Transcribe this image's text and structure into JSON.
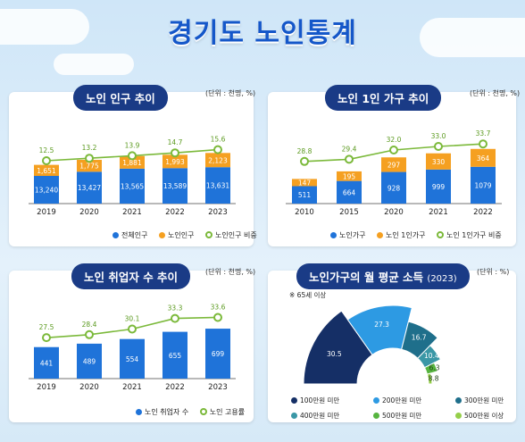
{
  "page_title": "경기도 노인통계",
  "colors": {
    "blue": "#1f73d9",
    "orange": "#f5a021",
    "green": "#7bb93a",
    "navy": "#1a3b86",
    "pie": [
      "#152f66",
      "#2d9ae3",
      "#1f6f8b",
      "#3a97a6",
      "#56b43f",
      "#95cf4a"
    ]
  },
  "chart_data": [
    {
      "id": "pop",
      "type": "bar",
      "title": "노인 인구 추이",
      "unit": "(단위 : 천명, %)",
      "categories": [
        "2019",
        "2020",
        "2021",
        "2022",
        "2023"
      ],
      "series": [
        {
          "name": "전체인구",
          "values": [
            13240,
            13427,
            13565,
            13589,
            13631
          ],
          "labels": [
            "13,240",
            "13,427",
            "13,565",
            "13,589",
            "13,631"
          ]
        },
        {
          "name": "노인인구",
          "values": [
            1651,
            1775,
            1881,
            1993,
            2123
          ],
          "labels": [
            "1,651",
            "1,775",
            "1,881",
            "1,993",
            "2,123"
          ]
        },
        {
          "name": "노인인구 비중",
          "values": [
            12.5,
            13.2,
            13.9,
            14.7,
            15.6
          ],
          "labels": [
            "12.5",
            "13.2",
            "13.9",
            "14.7",
            "15.6"
          ]
        }
      ]
    },
    {
      "id": "house",
      "type": "bar",
      "title": "노인 1인 가구 추이",
      "unit": "(단위 : 천명, %)",
      "categories": [
        "2010",
        "2015",
        "2020",
        "2021",
        "2022"
      ],
      "series": [
        {
          "name": "노인가구",
          "values": [
            511,
            664,
            928,
            999,
            1079
          ],
          "labels": [
            "511",
            "664",
            "928",
            "999",
            "1079"
          ]
        },
        {
          "name": "노인 1인가구",
          "values": [
            147,
            195,
            297,
            330,
            364
          ],
          "labels": [
            "147",
            "195",
            "297",
            "330",
            "364"
          ]
        },
        {
          "name": "노인 1인가구 비중",
          "values": [
            28.8,
            29.4,
            32.0,
            33.0,
            33.7
          ],
          "labels": [
            "28.8",
            "29.4",
            "32.0",
            "33.0",
            "33.7"
          ]
        }
      ]
    },
    {
      "id": "emp",
      "type": "bar",
      "title": "노인 취업자 수 추이",
      "unit": "(단위 : 천명, %)",
      "categories": [
        "2019",
        "2020",
        "2021",
        "2022",
        "2023"
      ],
      "series": [
        {
          "name": "노인 취업자 수",
          "values": [
            441,
            489,
            554,
            655,
            699
          ],
          "labels": [
            "441",
            "489",
            "554",
            "655",
            "699"
          ]
        },
        {
          "name": "노인 고용률",
          "values": [
            27.5,
            28.4,
            30.1,
            33.3,
            33.6
          ],
          "labels": [
            "27.5",
            "28.4",
            "30.1",
            "33.3",
            "33.6"
          ]
        }
      ]
    },
    {
      "id": "income",
      "type": "pie",
      "title": "노인가구의 월 평균 소득",
      "title_year": "(2023)",
      "unit": "(단위 : %)",
      "note": "※ 65세 이상",
      "categories": [
        "100만원 미만",
        "200만원 미만",
        "300만원 미만",
        "400만원 미만",
        "500만원 미만",
        "500만원 이상"
      ],
      "values": [
        30.5,
        27.3,
        16.7,
        10.4,
        6.3,
        8.8
      ],
      "labels": [
        "30.5",
        "27.3",
        "16.7",
        "10.4",
        "6.3",
        "8.8"
      ]
    }
  ]
}
